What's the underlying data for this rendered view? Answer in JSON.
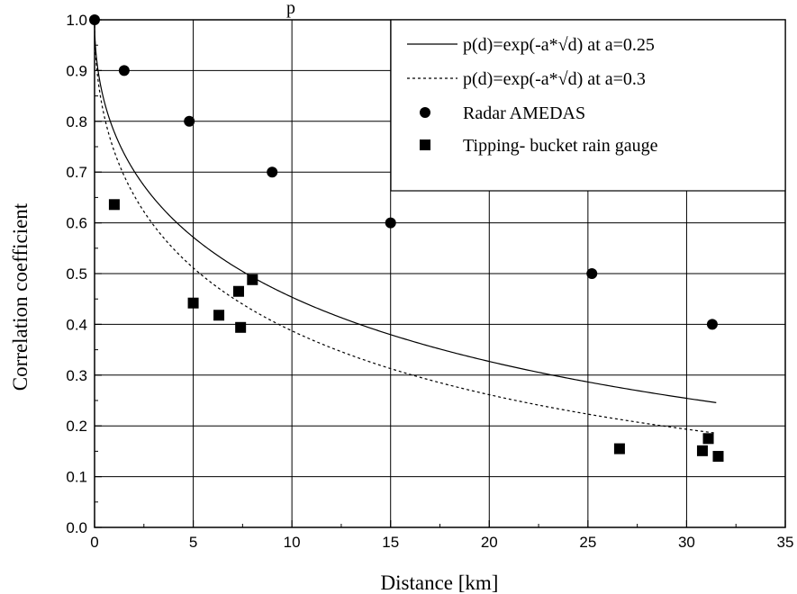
{
  "partial_title": "p",
  "chart_data": {
    "type": "scatter",
    "xlabel": "Distance [km]",
    "ylabel": "Correlation coefficient",
    "xlim": [
      0,
      35
    ],
    "ylim": [
      0.0,
      1.0
    ],
    "x_ticks": [
      0,
      5,
      10,
      15,
      20,
      25,
      30,
      35
    ],
    "x_tick_labels": [
      "0",
      "5",
      "10",
      "15",
      "20",
      "25",
      "30",
      "35"
    ],
    "y_ticks": [
      0.0,
      0.1,
      0.2,
      0.3,
      0.4,
      0.5,
      0.6,
      0.7,
      0.8,
      0.9,
      1.0
    ],
    "y_tick_labels": [
      "0.0",
      "0.1",
      "0.2",
      "0.3",
      "0.4",
      "0.5",
      "0.6",
      "0.7",
      "0.8",
      "0.9",
      "1.0"
    ],
    "grid": true,
    "legend_position": "top-right",
    "series": [
      {
        "name": "p(d)=exp(-a*√d) at a=0.25",
        "kind": "curve",
        "a": 0.25,
        "x_range": [
          0,
          31.5
        ],
        "line_style": "solid"
      },
      {
        "name": "p(d)=exp(-a*√d) at a=0.3",
        "kind": "curve",
        "a": 0.3,
        "x_range": [
          0,
          31.5
        ],
        "line_style": "dashed"
      },
      {
        "name": "Radar AMEDAS",
        "kind": "points",
        "marker": "circle",
        "x": [
          0,
          1.5,
          4.8,
          9.0,
          15.0,
          25.2,
          31.3
        ],
        "y": [
          1.0,
          0.9,
          0.8,
          0.7,
          0.6,
          0.5,
          0.4
        ]
      },
      {
        "name": "Tipping- bucket rain gauge",
        "kind": "points",
        "marker": "square",
        "x": [
          1.0,
          5.0,
          6.3,
          7.3,
          7.4,
          8.0,
          26.6,
          30.8,
          31.1,
          31.6
        ],
        "y": [
          0.636,
          0.442,
          0.418,
          0.465,
          0.394,
          0.488,
          0.155,
          0.151,
          0.175,
          0.14
        ]
      }
    ]
  }
}
